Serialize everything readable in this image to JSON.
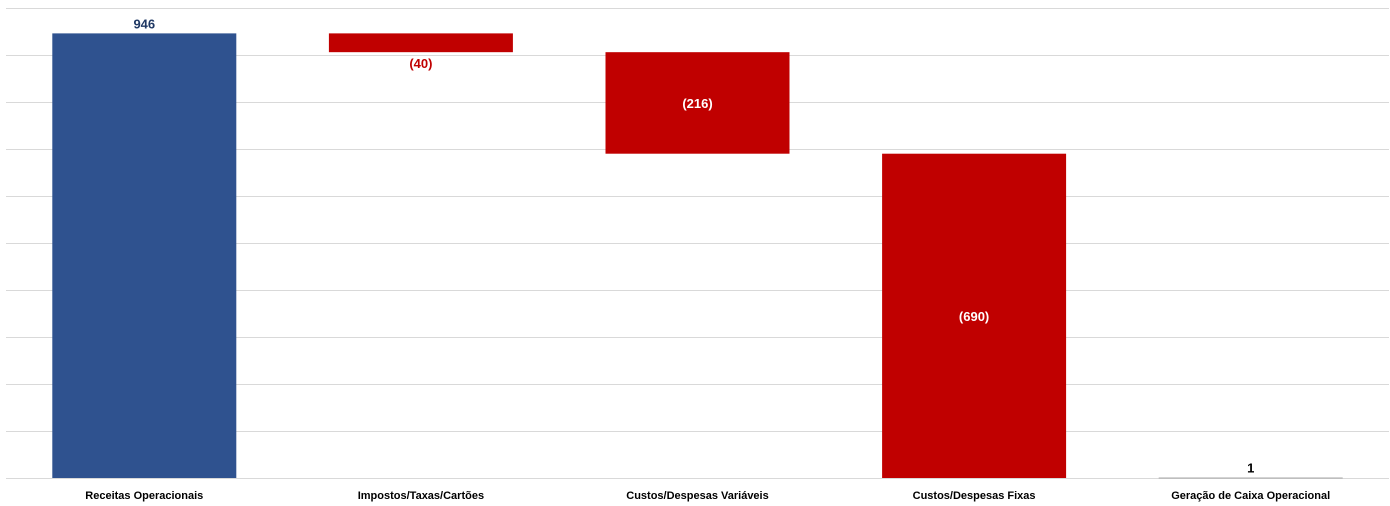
{
  "chart_data": {
    "type": "bar",
    "subtype": "waterfall",
    "title": "",
    "xlabel": "",
    "ylabel": "",
    "ylim": [
      0,
      1000
    ],
    "grid": true,
    "legend": "none",
    "categories": [
      "Receitas Operacionais",
      "Impostos/Taxas/Cartões",
      "Custos/Despesas Variáveis",
      "Custos/Despesas Fixas",
      "Geração de Caixa Operacional"
    ],
    "steps": [
      {
        "kind": "total",
        "value": 946,
        "label": "946",
        "color": "#2F528F",
        "label_color": "#1F3864",
        "label_position": "above"
      },
      {
        "kind": "delta",
        "value": -40,
        "label": "(40)",
        "color": "#C00000",
        "label_color": "#C00000",
        "label_position": "below"
      },
      {
        "kind": "delta",
        "value": -216,
        "label": "(216)",
        "color": "#C00000",
        "label_color": "#FFFFFF",
        "label_position": "inside"
      },
      {
        "kind": "delta",
        "value": -690,
        "label": "(690)",
        "color": "#C00000",
        "label_color": "#FFFFFF",
        "label_position": "inside"
      },
      {
        "kind": "total",
        "value": 1,
        "label": "1",
        "color": "#A5A5A5",
        "label_color": "#000000",
        "label_position": "above"
      }
    ]
  },
  "colors": {
    "gridline": "#D9D9D9",
    "category_label": "#000000"
  }
}
